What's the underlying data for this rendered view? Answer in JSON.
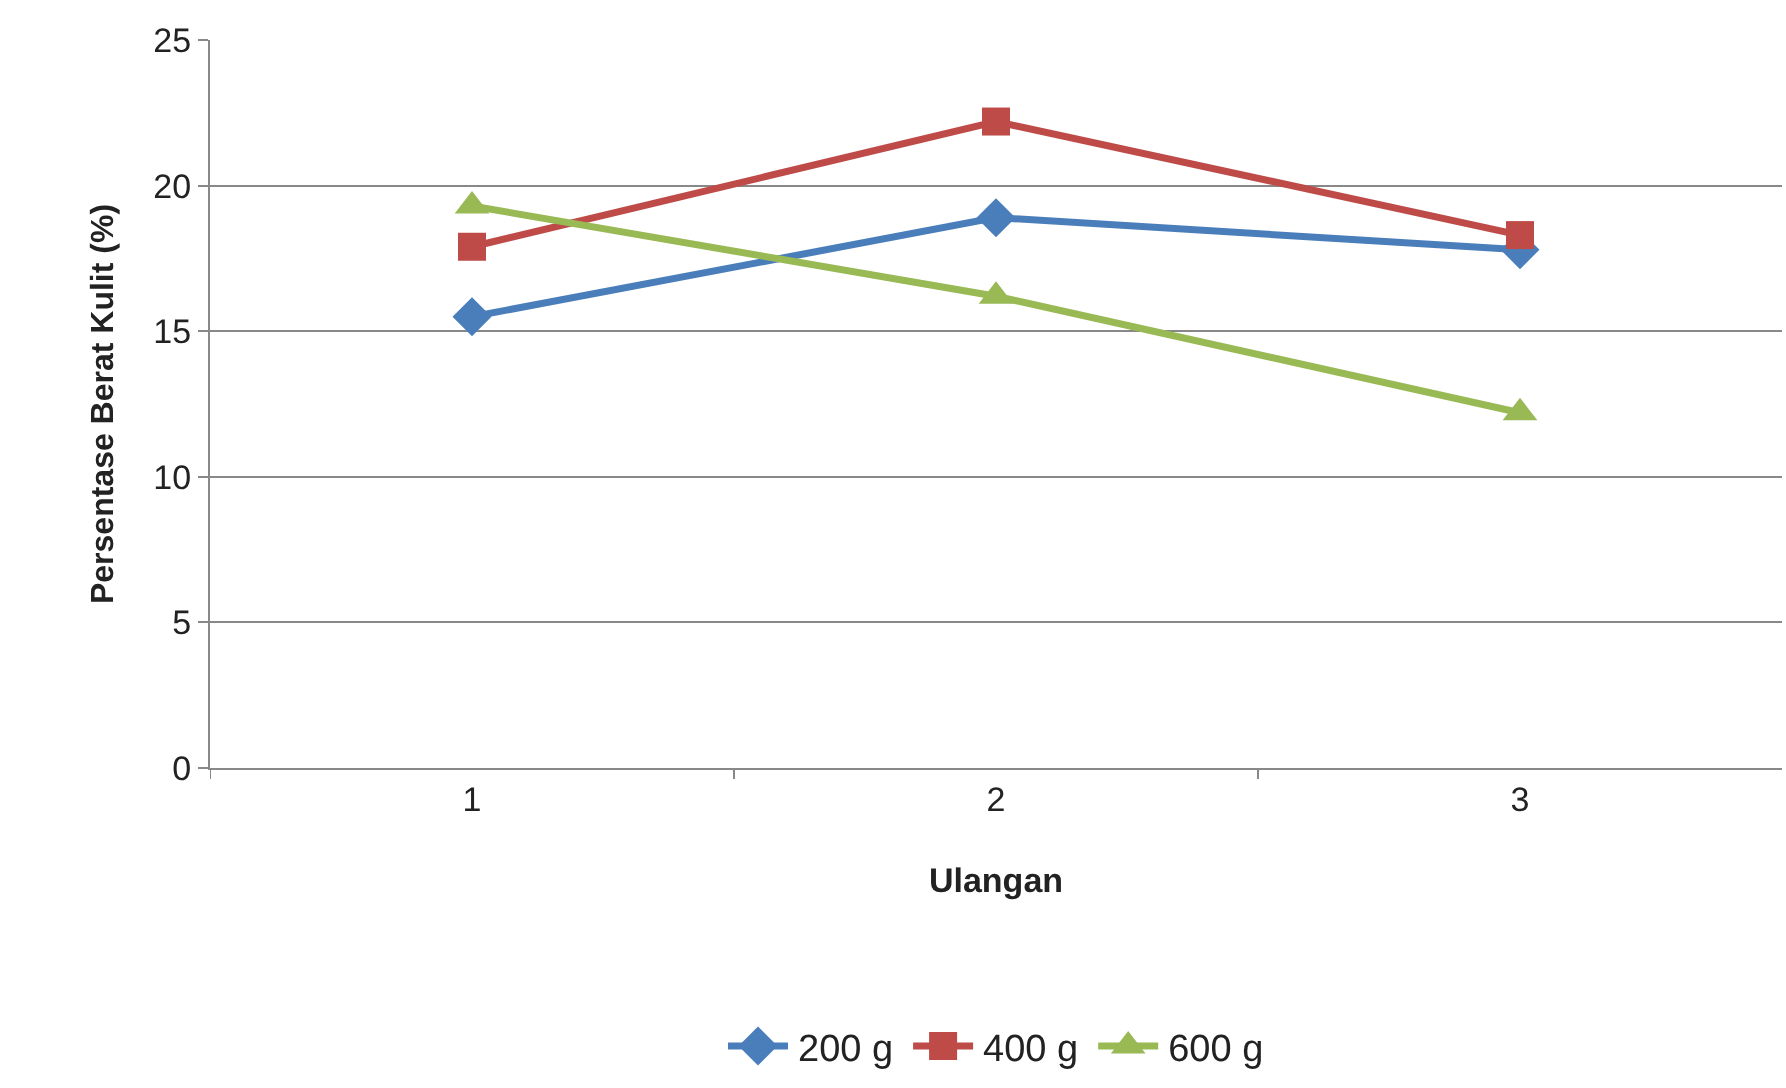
{
  "chart_data": {
    "type": "line",
    "xlabel": "Ulangan",
    "ylabel": "Persentase Berat Kulit (%)",
    "categories": [
      "1",
      "2",
      "3"
    ],
    "series": [
      {
        "name": "200 g",
        "color": "#4a7ebb",
        "marker": "diamond",
        "values": [
          15.5,
          18.9,
          17.8
        ]
      },
      {
        "name": "400 g",
        "color": "#be4b48",
        "marker": "square",
        "values": [
          17.9,
          22.2,
          18.3
        ]
      },
      {
        "name": "600 g",
        "color": "#98b954",
        "marker": "triangle",
        "values": [
          19.3,
          16.2,
          12.2
        ]
      }
    ],
    "ylim": [
      0,
      25
    ],
    "yticks": [
      0,
      5,
      10,
      15,
      20,
      25
    ],
    "grid": "y",
    "legend": "bottom",
    "line_style": "solid"
  }
}
